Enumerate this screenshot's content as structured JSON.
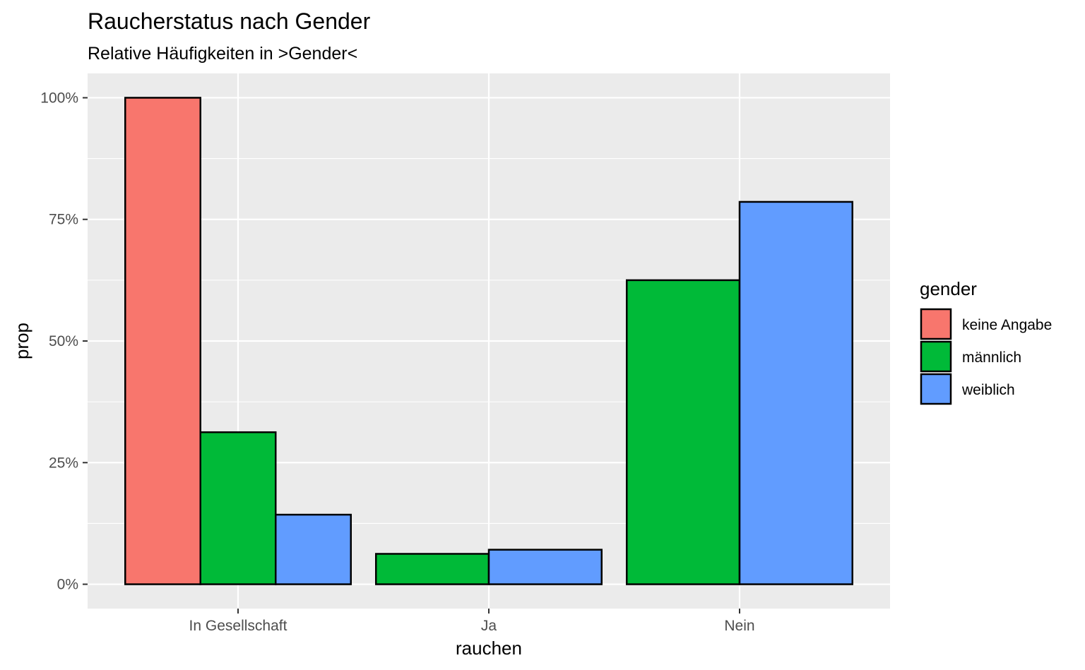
{
  "chart_data": {
    "type": "bar",
    "title": "Raucherstatus nach Gender",
    "subtitle": "Relative Häufigkeiten in >Gender<",
    "xlabel": "rauchen",
    "ylabel": "prop",
    "categories": [
      "In Gesellschaft",
      "Ja",
      "Nein"
    ],
    "ylim": [
      -0.05,
      1.05
    ],
    "yticks": [
      0,
      0.25,
      0.5,
      0.75,
      1.0
    ],
    "ytick_labels": [
      "0%",
      "25%",
      "50%",
      "75%",
      "100%"
    ],
    "grid": true,
    "legend": {
      "title": "gender",
      "position": "right"
    },
    "series": [
      {
        "name": "keine Angabe",
        "color": "#F8766D",
        "values": [
          1.0,
          null,
          null
        ]
      },
      {
        "name": "männlich",
        "color": "#00BA38",
        "values": [
          0.3125,
          0.0625,
          0.625
        ]
      },
      {
        "name": "weiblich",
        "color": "#619CFF",
        "values": [
          0.143,
          0.071,
          0.786
        ]
      }
    ]
  }
}
